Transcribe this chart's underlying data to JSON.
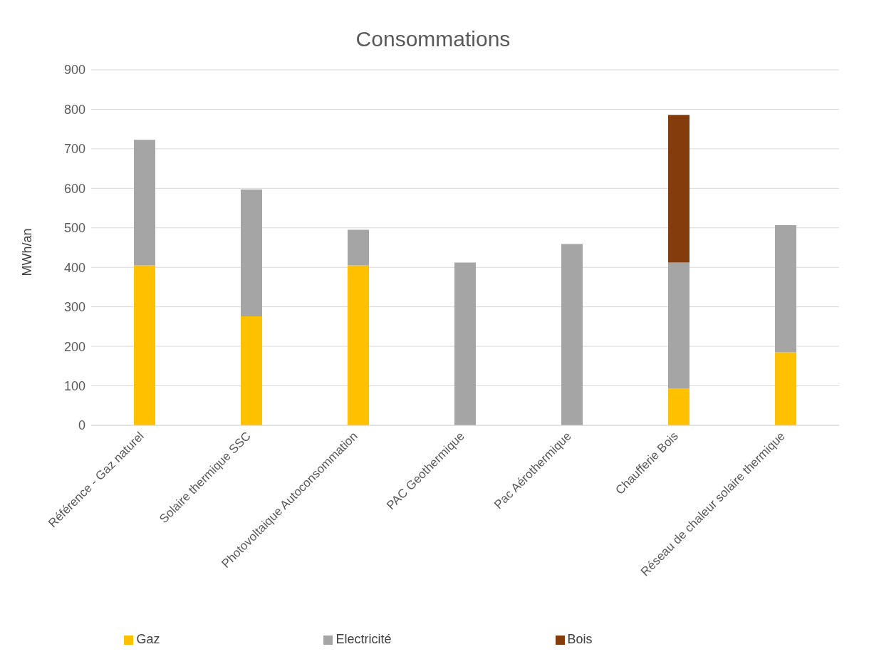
{
  "chart_data": {
    "type": "bar",
    "title": "Consommations",
    "ylabel": "MWh/an",
    "stacked": true,
    "categories": [
      "Référence - Gaz naturel",
      "Solaire thermique SSC",
      "Photovoltaique Autoconsommation",
      "PAC Geothermique",
      "Pac Aérothermique",
      "Chaufferie Bois",
      "Réseau de chaleur solaire thermique"
    ],
    "series": [
      {
        "name": "Gaz",
        "color": "#ffc000",
        "values": [
          405,
          276,
          405,
          0,
          0,
          94,
          185
        ]
      },
      {
        "name": "Electricité",
        "color": "#a5a5a5",
        "values": [
          318,
          321,
          90,
          412,
          459,
          318,
          322
        ]
      },
      {
        "name": "Bois",
        "color": "#843c0c",
        "values": [
          0,
          0,
          0,
          0,
          0,
          374,
          0
        ]
      }
    ],
    "ylim": [
      0,
      900
    ],
    "yticks": [
      0,
      100,
      200,
      300,
      400,
      500,
      600,
      700,
      800,
      900
    ],
    "grid": "y",
    "legend": "bottom"
  }
}
